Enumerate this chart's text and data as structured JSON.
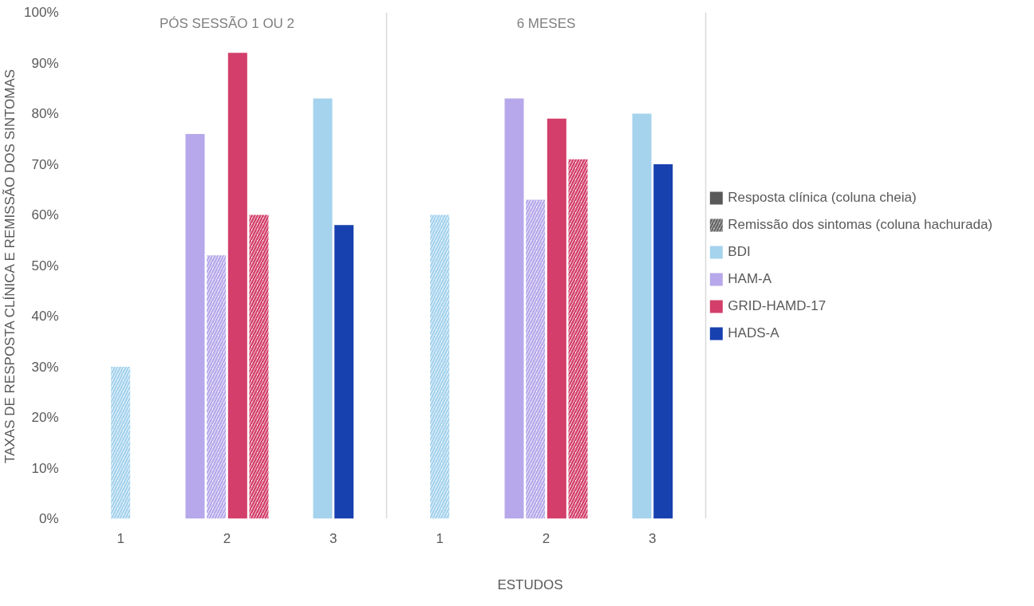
{
  "chart_data": {
    "type": "bar",
    "xlabel": "ESTUDOS",
    "ylabel": "TAXAS DE RESPOSTA CLÍNICA E REMISSÃO DOS SINTOMAS",
    "categories": [
      "1",
      "2",
      "3",
      "1",
      "2",
      "3"
    ],
    "annotations": [
      "PÓS SESSÃO 1 OU 2",
      "6 MESES"
    ],
    "series": [
      {
        "name": "Resposta clínica (coluna cheia)",
        "color": "#595959",
        "values": [
          null,
          null,
          null,
          null,
          null,
          null
        ]
      },
      {
        "name": "Remissão dos sintomas (coluna hachurada)",
        "color": "#595959",
        "values": [
          null,
          null,
          null,
          null,
          null,
          null
        ]
      },
      {
        "name": "BDI",
        "color": "#a5d3ed",
        "values": [
          null,
          null,
          83,
          null,
          null,
          80
        ]
      },
      {
        "color": "#a5d3ed",
        "values": [
          30,
          null,
          null,
          60,
          null,
          null
        ]
      },
      {
        "name": "HAM-A",
        "color": "#b6a8ea",
        "values": [
          null,
          76,
          null,
          null,
          83,
          null
        ]
      },
      {
        "color": "#b6a8ea",
        "values": [
          null,
          52,
          null,
          null,
          63,
          null
        ]
      },
      {
        "name": "GRID-HAMD-17",
        "color": "#d33f6a",
        "values": [
          null,
          92,
          null,
          null,
          79,
          null
        ]
      },
      {
        "color": "#d33f6a",
        "values": [
          null,
          60,
          null,
          null,
          71,
          null
        ]
      },
      {
        "name": "HADS-A",
        "color": "#1841b0",
        "values": [
          null,
          null,
          58,
          null,
          null,
          70
        ]
      }
    ],
    "ylim": [
      0,
      100
    ],
    "yticks": [
      {
        "value": 0,
        "label": "0%"
      },
      {
        "value": 10,
        "label": "10%"
      },
      {
        "value": 20,
        "label": "20%"
      },
      {
        "value": 30,
        "label": "30%"
      },
      {
        "value": 40,
        "label": "40%"
      },
      {
        "value": 50,
        "label": "50%"
      },
      {
        "value": 60,
        "label": "60%"
      },
      {
        "value": 70,
        "label": "70%"
      },
      {
        "value": 80,
        "label": "80%"
      },
      {
        "value": 90,
        "label": "90%"
      },
      {
        "value": 100,
        "label": "100%"
      }
    ],
    "legend": "right"
  }
}
